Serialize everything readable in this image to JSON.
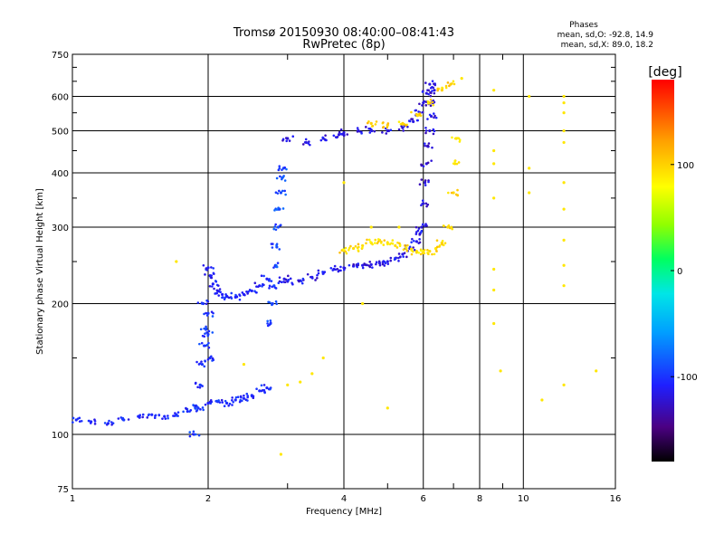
{
  "header": {
    "title_line1": "Tromsø 20150930 08:40:00–08:41:43",
    "title_line2": "RwPretec (8p)",
    "phases_heading": "Phases",
    "phases_o": "mean, sd,O: -92.8, 14.9",
    "phases_x": "mean, sd,X:  89.0, 18.2"
  },
  "colorbar": {
    "label": "[deg]",
    "min": -180,
    "max": 180,
    "tick_values": [
      100,
      0,
      -100
    ],
    "tick_labels": [
      "100",
      "0",
      "-100"
    ]
  },
  "chart_data": {
    "type": "scatter",
    "title": "Tromsø 20150930 08:40:00–08:41:43",
    "subtitle": "RwPretec (8p)",
    "xlabel": "Frequency [MHz]",
    "ylabel": "Stationary phase Virtual Height [km]",
    "x_scale": "log",
    "y_scale": "log",
    "xlim": [
      1,
      16
    ],
    "ylim": [
      75,
      750
    ],
    "grid": true,
    "x_ticks": [
      1,
      2,
      4,
      6,
      8,
      10,
      16
    ],
    "x_tick_labels": [
      "1",
      "2",
      "4",
      "6",
      "8",
      "10",
      "16"
    ],
    "y_ticks": [
      75,
      100,
      200,
      300,
      400,
      500,
      600,
      750
    ],
    "y_tick_labels": [
      "75",
      "100",
      "200",
      "300",
      "400",
      "500",
      "600",
      "750"
    ],
    "series": [
      {
        "trace": "o-low",
        "phase": -105,
        "points": [
          [
            1.02,
            108
          ],
          [
            1.1,
            107
          ],
          [
            1.2,
            106
          ],
          [
            1.3,
            108
          ],
          [
            1.4,
            110
          ],
          [
            1.5,
            111
          ],
          [
            1.6,
            110
          ],
          [
            1.7,
            111
          ],
          [
            1.8,
            113
          ],
          [
            1.9,
            115
          ],
          [
            2.0,
            118
          ],
          [
            2.1,
            119
          ],
          [
            2.2,
            118
          ],
          [
            2.3,
            120
          ],
          [
            2.4,
            121
          ],
          [
            2.5,
            123
          ],
          [
            2.6,
            126
          ],
          [
            2.7,
            128
          ]
        ]
      },
      {
        "trace": "o-e-cusp",
        "phase": -100,
        "points": [
          [
            1.86,
            100
          ],
          [
            1.9,
            115
          ],
          [
            1.92,
            130
          ],
          [
            1.94,
            145
          ],
          [
            1.96,
            160
          ],
          [
            1.98,
            175
          ],
          [
            2.0,
            190
          ],
          [
            2.0,
            170
          ],
          [
            2.02,
            150
          ],
          [
            1.95,
            200
          ]
        ]
      },
      {
        "trace": "o-f1",
        "phase": -110,
        "points": [
          [
            2.0,
            242
          ],
          [
            2.02,
            232
          ],
          [
            2.05,
            222
          ],
          [
            2.1,
            214
          ],
          [
            2.15,
            210
          ],
          [
            2.2,
            208
          ],
          [
            2.3,
            207
          ],
          [
            2.4,
            210
          ],
          [
            2.5,
            214
          ],
          [
            2.6,
            220
          ],
          [
            2.7,
            228
          ]
        ]
      },
      {
        "trace": "o-f1-cusp",
        "phase": -92,
        "points": [
          [
            2.75,
            180
          ],
          [
            2.77,
            200
          ],
          [
            2.8,
            220
          ],
          [
            2.82,
            245
          ],
          [
            2.84,
            270
          ],
          [
            2.86,
            300
          ],
          [
            2.88,
            330
          ],
          [
            2.9,
            360
          ],
          [
            2.92,
            390
          ],
          [
            2.94,
            410
          ]
        ]
      },
      {
        "trace": "o-f2",
        "phase": -115,
        "points": [
          [
            2.95,
            228
          ],
          [
            3.0,
            225
          ],
          [
            3.2,
            226
          ],
          [
            3.4,
            230
          ],
          [
            3.6,
            236
          ],
          [
            3.8,
            240
          ],
          [
            4.0,
            242
          ],
          [
            4.2,
            244
          ],
          [
            4.4,
            245
          ],
          [
            4.6,
            246
          ],
          [
            4.8,
            248
          ],
          [
            5.0,
            250
          ],
          [
            5.2,
            254
          ],
          [
            5.4,
            260
          ],
          [
            5.6,
            268
          ],
          [
            5.8,
            278
          ],
          [
            5.9,
            290
          ]
        ]
      },
      {
        "trace": "o-f2-cusp",
        "phase": -120,
        "points": [
          [
            5.95,
            300
          ],
          [
            6.0,
            340
          ],
          [
            6.05,
            380
          ],
          [
            6.1,
            420
          ],
          [
            6.15,
            460
          ],
          [
            6.2,
            500
          ],
          [
            6.25,
            540
          ],
          [
            6.3,
            580
          ],
          [
            6.35,
            620
          ]
        ]
      },
      {
        "trace": "o-multi",
        "phase": -118,
        "points": [
          [
            3.0,
            480
          ],
          [
            3.3,
            470
          ],
          [
            3.6,
            480
          ],
          [
            3.9,
            490
          ],
          [
            4.0,
            495
          ],
          [
            4.3,
            500
          ],
          [
            4.6,
            502
          ],
          [
            5.0,
            500
          ],
          [
            5.4,
            508
          ],
          [
            5.7,
            525
          ],
          [
            5.9,
            550
          ],
          [
            6.0,
            580
          ],
          [
            6.1,
            610
          ],
          [
            6.2,
            640
          ]
        ]
      },
      {
        "trace": "x-f2",
        "phase": 95,
        "points": [
          [
            4.0,
            265
          ],
          [
            4.2,
            268
          ],
          [
            4.4,
            272
          ],
          [
            4.6,
            276
          ],
          [
            4.8,
            280
          ],
          [
            5.0,
            276
          ],
          [
            5.2,
            272
          ],
          [
            5.5,
            268
          ],
          [
            5.8,
            264
          ],
          [
            6.0,
            262
          ],
          [
            6.2,
            264
          ],
          [
            6.4,
            268
          ],
          [
            6.6,
            276
          ],
          [
            6.8,
            300
          ],
          [
            7.0,
            360
          ],
          [
            7.05,
            420
          ],
          [
            7.1,
            480
          ]
        ]
      },
      {
        "trace": "x-multi",
        "phase": 100,
        "points": [
          [
            4.6,
            520
          ],
          [
            5.0,
            515
          ],
          [
            5.4,
            520
          ],
          [
            5.8,
            545
          ],
          [
            6.2,
            580
          ],
          [
            6.6,
            620
          ],
          [
            6.9,
            640
          ]
        ]
      },
      {
        "trace": "scattered",
        "phase": 90,
        "points": [
          [
            1.7,
            250
          ],
          [
            2.4,
            145
          ],
          [
            2.9,
            90
          ],
          [
            3.0,
            130
          ],
          [
            3.2,
            132
          ],
          [
            3.4,
            138
          ],
          [
            3.6,
            150
          ],
          [
            4.0,
            380
          ],
          [
            4.4,
            200
          ],
          [
            4.6,
            300
          ],
          [
            5.0,
            115
          ],
          [
            5.3,
            300
          ],
          [
            7.3,
            660
          ],
          [
            8.6,
            620
          ],
          [
            8.6,
            450
          ],
          [
            8.6,
            420
          ],
          [
            8.6,
            350
          ],
          [
            8.6,
            240
          ],
          [
            8.6,
            215
          ],
          [
            8.6,
            180
          ],
          [
            8.9,
            140
          ],
          [
            10.3,
            600
          ],
          [
            10.3,
            360
          ],
          [
            10.3,
            410
          ],
          [
            11.0,
            120
          ],
          [
            12.3,
            600
          ],
          [
            12.3,
            580
          ],
          [
            12.3,
            550
          ],
          [
            12.3,
            500
          ],
          [
            12.3,
            470
          ],
          [
            12.3,
            380
          ],
          [
            12.3,
            330
          ],
          [
            12.3,
            280
          ],
          [
            12.3,
            245
          ],
          [
            12.3,
            220
          ],
          [
            12.3,
            130
          ],
          [
            14.5,
            140
          ]
        ]
      }
    ]
  }
}
